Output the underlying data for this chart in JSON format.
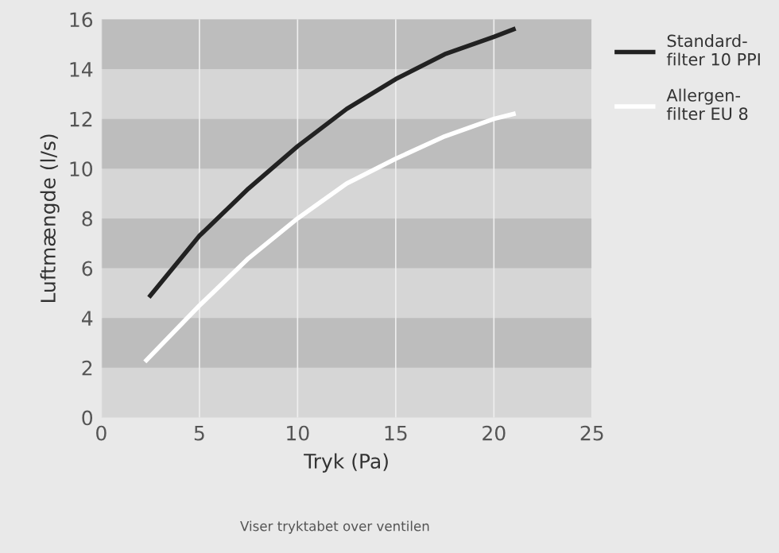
{
  "chart_data": {
    "type": "line",
    "xlabel": "Tryk (Pa)",
    "ylabel": "Luftmængde (l/s)",
    "annotations": [
      "Viser tryktabet over ventilen"
    ],
    "series": [
      {
        "name": "Standard-\nfilter 10 PPI",
        "color": "#222222",
        "x": [
          2.5,
          5,
          7.5,
          10,
          12.5,
          15,
          17.5,
          20,
          21
        ],
        "values": [
          4.9,
          7.3,
          9.2,
          10.9,
          12.4,
          13.6,
          14.6,
          15.3,
          15.6
        ]
      },
      {
        "name": "Allergen-\nfilter EU 8",
        "color": "#ffffff",
        "x": [
          2.3,
          5,
          7.5,
          10,
          12.5,
          15,
          17.5,
          20,
          21
        ],
        "values": [
          2.3,
          4.5,
          6.4,
          8.0,
          9.4,
          10.4,
          11.3,
          12.0,
          12.2
        ]
      }
    ],
    "xlim": [
      0,
      25
    ],
    "xticks": [
      0,
      5,
      10,
      15,
      20,
      25
    ],
    "ylim": [
      0,
      16
    ],
    "yticks": [
      0,
      2,
      4,
      6,
      8,
      10,
      12,
      14,
      16
    ],
    "bands": [
      {
        "axis": "y",
        "from": 2,
        "to": 4,
        "color": "#bdbdbd"
      },
      {
        "axis": "y",
        "from": 6,
        "to": 8,
        "color": "#bdbdbd"
      },
      {
        "axis": "y",
        "from": 10,
        "to": 12,
        "color": "#bdbdbd"
      },
      {
        "axis": "y",
        "from": 14,
        "to": 16,
        "color": "#bdbdbd"
      }
    ],
    "grid": "x",
    "legend": "right",
    "marker": "none",
    "line_style": "solid"
  }
}
